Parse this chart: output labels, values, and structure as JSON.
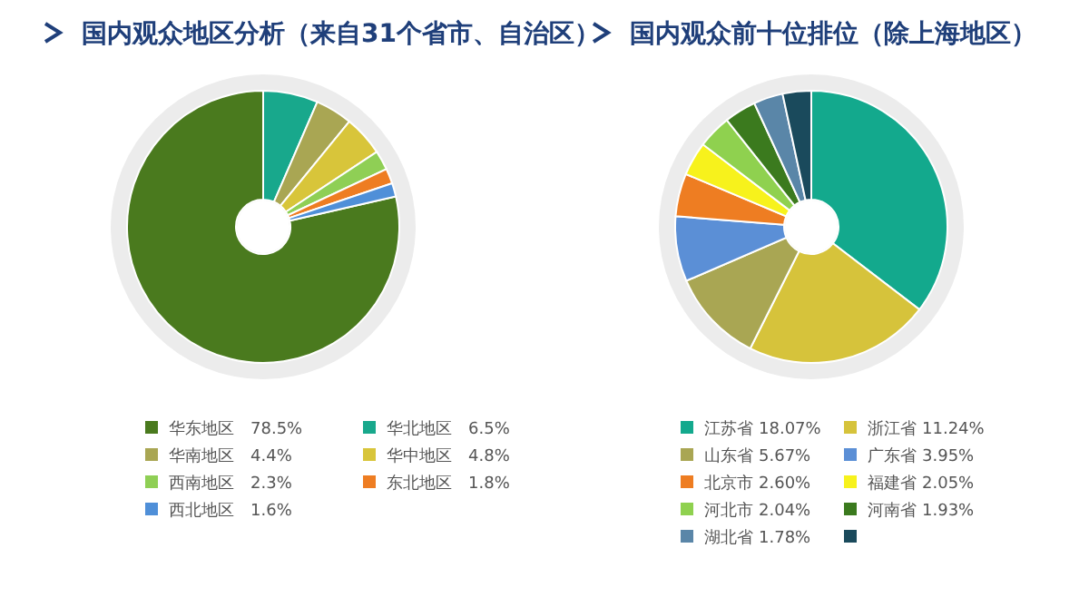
{
  "chart_data": [
    {
      "type": "donut",
      "title": "国内观众地区分析（来自31个省市、自治区）",
      "legend": "bottom",
      "categories": [
        "华东地区",
        "华北地区",
        "华南地区",
        "华中地区",
        "西南地区",
        "东北地区",
        "西北地区"
      ],
      "values": [
        78.5,
        6.5,
        4.4,
        4.8,
        2.3,
        1.8,
        1.6
      ],
      "colors": [
        "#4a7a1e",
        "#18a88c",
        "#a9a653",
        "#d8c53a",
        "#8fcf55",
        "#ee7d22",
        "#4f8fd8"
      ],
      "value_labels": [
        "78.5%",
        "6.5%",
        "4.4%",
        "4.8%",
        "2.3%",
        "1.8%",
        "1.6%"
      ]
    },
    {
      "type": "donut",
      "title": "国内观众前十位排位（除上海地区）",
      "legend": "bottom",
      "categories": [
        "江苏省",
        "浙江省",
        "山东省",
        "广东省",
        "北京市",
        "福建省",
        "河北市",
        "河南省",
        "湖北省",
        null
      ],
      "values": [
        18.07,
        11.24,
        5.67,
        3.95,
        2.6,
        2.05,
        2.04,
        1.93,
        1.78,
        1.73
      ],
      "colors": [
        "#13a98d",
        "#d6c33b",
        "#a9a653",
        "#5b8fd6",
        "#ee7d22",
        "#f7f21c",
        "#8fd14f",
        "#3b7a1e",
        "#5a86a8",
        "#1a4a5c"
      ],
      "value_labels": [
        "18.07%",
        "11.24%",
        "5.67%",
        "3.95%",
        "2.60%",
        "2.05%",
        "2.04%",
        "1.93%",
        "1.78%",
        null
      ]
    }
  ]
}
